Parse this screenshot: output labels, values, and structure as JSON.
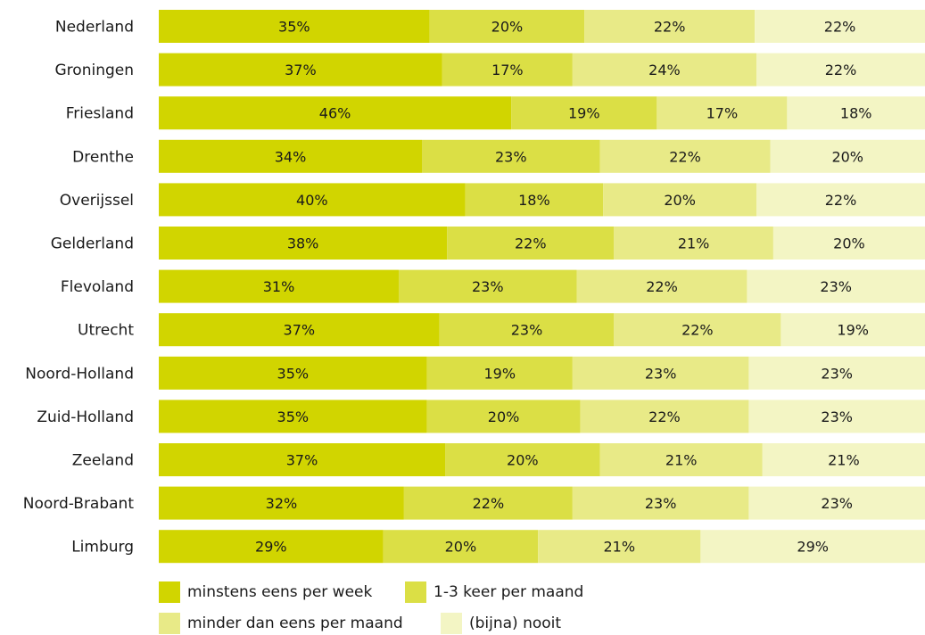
{
  "chart_data": {
    "type": "bar",
    "orientation": "horizontal",
    "stacked": true,
    "normalized": true,
    "categories": [
      "Nederland",
      "Groningen",
      "Friesland",
      "Drenthe",
      "Overijssel",
      "Gelderland",
      "Flevoland",
      "Utrecht",
      "Noord-Holland",
      "Zuid-Holland",
      "Zeeland",
      "Noord-Brabant",
      "Limburg"
    ],
    "series": [
      {
        "name": "minstens eens per week",
        "color": "#d1d500",
        "values": [
          35,
          37,
          46,
          34,
          40,
          38,
          31,
          37,
          35,
          35,
          37,
          32,
          29
        ]
      },
      {
        "name": "1-3 keer per maand",
        "color": "#dbdf45",
        "values": [
          20,
          17,
          19,
          23,
          18,
          22,
          23,
          23,
          19,
          20,
          20,
          22,
          20
        ]
      },
      {
        "name": "minder dan eens per maand",
        "color": "#e8ea87",
        "values": [
          22,
          24,
          17,
          22,
          20,
          21,
          22,
          22,
          23,
          22,
          21,
          23,
          21
        ]
      },
      {
        "name": "(bijna) nooit",
        "color": "#f3f5c4",
        "values": [
          22,
          22,
          18,
          20,
          22,
          20,
          23,
          19,
          23,
          23,
          21,
          23,
          29
        ]
      }
    ],
    "data_label_suffix": "%",
    "legend_position": "bottom",
    "grid": false
  }
}
